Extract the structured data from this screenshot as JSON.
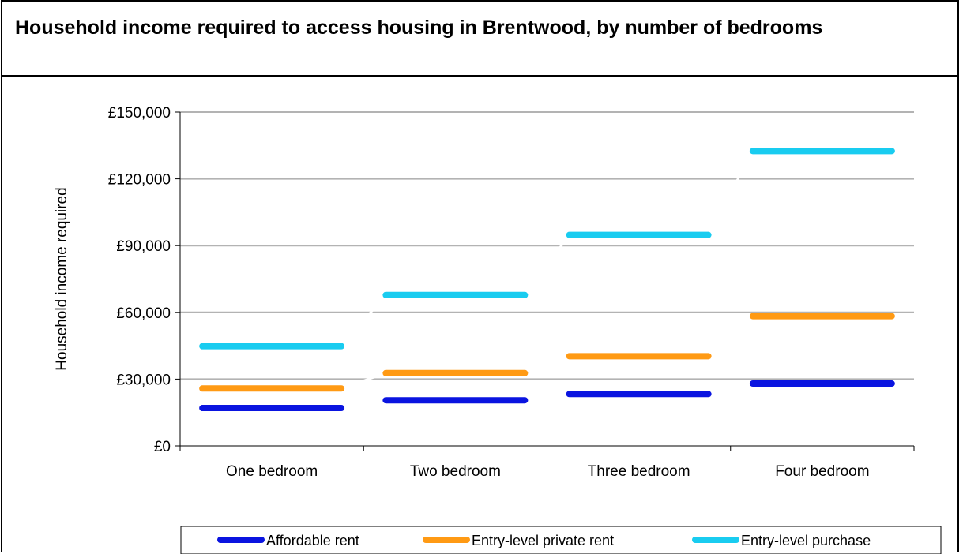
{
  "chart_data": {
    "type": "line",
    "title": "Household income required to access housing in Brentwood, by number of bedrooms",
    "ylabel": "Household income required",
    "xlabel": "",
    "categories": [
      "One bedroom",
      "Two bedroom",
      "Three bedroom",
      "Four bedroom"
    ],
    "ylim": [
      0,
      150000
    ],
    "yticks": [
      0,
      30000,
      60000,
      90000,
      120000,
      150000
    ],
    "ytick_labels": [
      "£0",
      "£30,000",
      "£60,000",
      "£90,000",
      "£120,000",
      "£150,000"
    ],
    "grid": true,
    "legend_position": "bottom",
    "series": [
      {
        "name": "Affordable rent",
        "color": "#0A14E0",
        "values": [
          17000,
          20500,
          23300,
          28000
        ]
      },
      {
        "name": "Entry-level private rent",
        "color": "#FF9A14",
        "values": [
          25800,
          32700,
          40300,
          58300
        ]
      },
      {
        "name": "Entry-level purchase",
        "color": "#19CCF0",
        "values": [
          44800,
          67800,
          94800,
          132500
        ]
      }
    ]
  }
}
